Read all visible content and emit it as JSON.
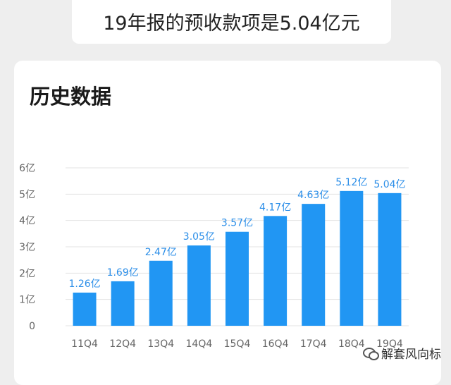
{
  "header": {
    "summary": "19年报的预收款项是5.04亿元"
  },
  "section": {
    "title": "历史数据"
  },
  "watermark": {
    "text": "解套风向标"
  },
  "colors": {
    "bar": "#2196f3",
    "label": "#2b8ee8",
    "axis_text": "#666666",
    "grid": "#e3e3e3"
  },
  "chart_data": {
    "type": "bar",
    "title": "",
    "xlabel": "",
    "ylabel": "",
    "categories": [
      "11Q4",
      "12Q4",
      "13Q4",
      "14Q4",
      "15Q4",
      "16Q4",
      "17Q4",
      "18Q4",
      "19Q4"
    ],
    "values": [
      1.26,
      1.69,
      2.47,
      3.05,
      3.57,
      4.17,
      4.63,
      5.12,
      5.04
    ],
    "data_labels": [
      "1.26亿",
      "1.69亿",
      "2.47亿",
      "3.05亿",
      "3.57亿",
      "4.17亿",
      "4.63亿",
      "5.12亿",
      "5.04亿"
    ],
    "ylim": [
      0,
      6
    ],
    "yticks": [
      0,
      1,
      2,
      3,
      4,
      5,
      6
    ],
    "ytick_labels": [
      "0",
      "1亿",
      "2亿",
      "3亿",
      "4亿",
      "5亿",
      "6亿"
    ],
    "grid": true
  }
}
